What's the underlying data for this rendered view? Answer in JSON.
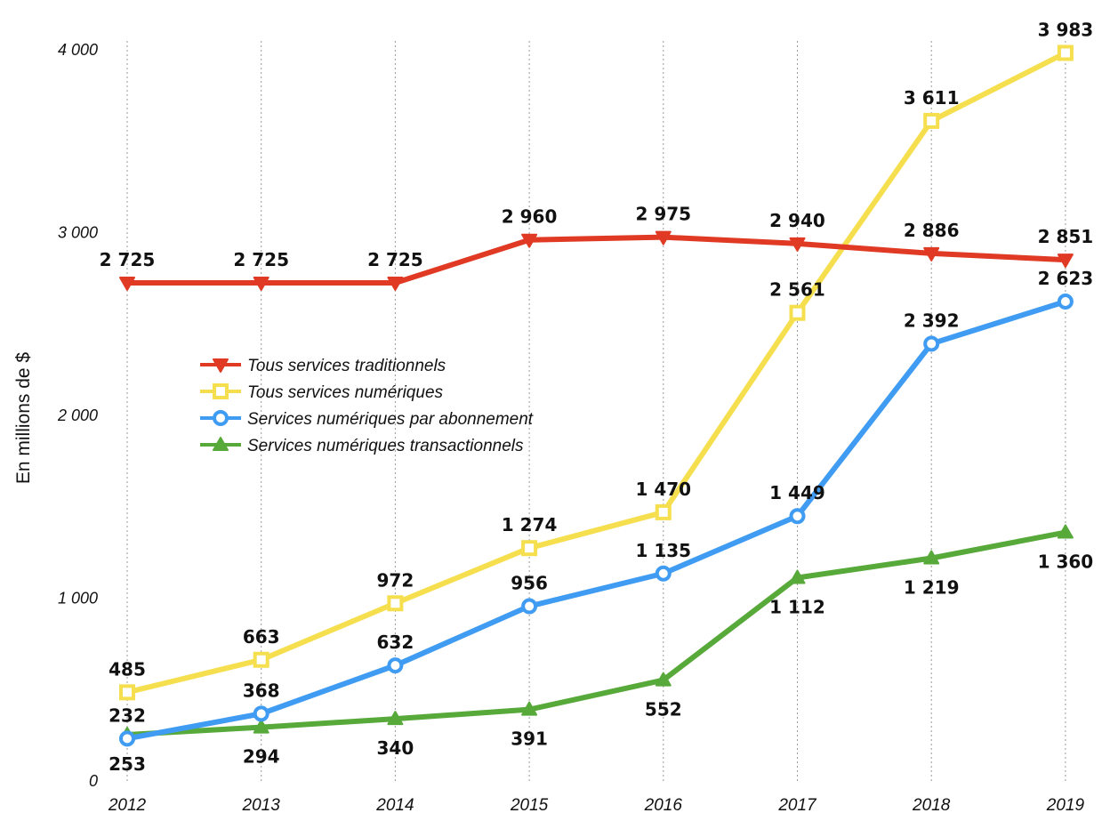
{
  "chart_data": {
    "type": "line",
    "title": "",
    "xlabel": "",
    "ylabel": "En millions de $",
    "ylim": [
      0,
      4000
    ],
    "grid": "vertical dotted",
    "legend_position": "center-left",
    "categories": [
      "2012",
      "2013",
      "2014",
      "2015",
      "2016",
      "2017",
      "2018",
      "2019"
    ],
    "y_ticks": [
      {
        "value": 0,
        "label": "0"
      },
      {
        "value": 1000,
        "label": "1 000"
      },
      {
        "value": 2000,
        "label": "2 000"
      },
      {
        "value": 3000,
        "label": "3 000"
      },
      {
        "value": 4000,
        "label": "4 000"
      }
    ],
    "series": [
      {
        "name": "Tous services traditionnels",
        "color": "#e03a24",
        "marker": "triangle-down",
        "label_position": "above",
        "values": [
          2725,
          2725,
          2725,
          2960,
          2975,
          2940,
          2886,
          2851
        ],
        "labels": [
          "2 725",
          "2 725",
          "2 725",
          "2 960",
          "2 975",
          "2 940",
          "2 886",
          "2 851"
        ]
      },
      {
        "name": "Tous services numériques",
        "color": "#f6df4e",
        "marker": "square",
        "label_position": "above",
        "values": [
          485,
          663,
          972,
          1274,
          1470,
          2561,
          3611,
          3983
        ],
        "labels": [
          "485",
          "663",
          "972",
          "1 274",
          "1 470",
          "2 561",
          "3 611",
          "3 983"
        ]
      },
      {
        "name": "Services numériques par abonnement",
        "color": "#3f9cf2",
        "marker": "circle",
        "label_position": "above",
        "values": [
          232,
          368,
          632,
          956,
          1135,
          1449,
          2392,
          2623
        ],
        "labels": [
          "232",
          "368",
          "632",
          "956",
          "1 135",
          "1 449",
          "2 392",
          "2 623"
        ]
      },
      {
        "name": "Services numériques transactionnels",
        "color": "#57a93a",
        "marker": "triangle-up",
        "label_position": "below",
        "values": [
          253,
          294,
          340,
          391,
          552,
          1112,
          1219,
          1360
        ],
        "labels": [
          "253",
          "294",
          "340",
          "391",
          "552",
          "1 112",
          "1 219",
          "1 360"
        ]
      }
    ]
  }
}
